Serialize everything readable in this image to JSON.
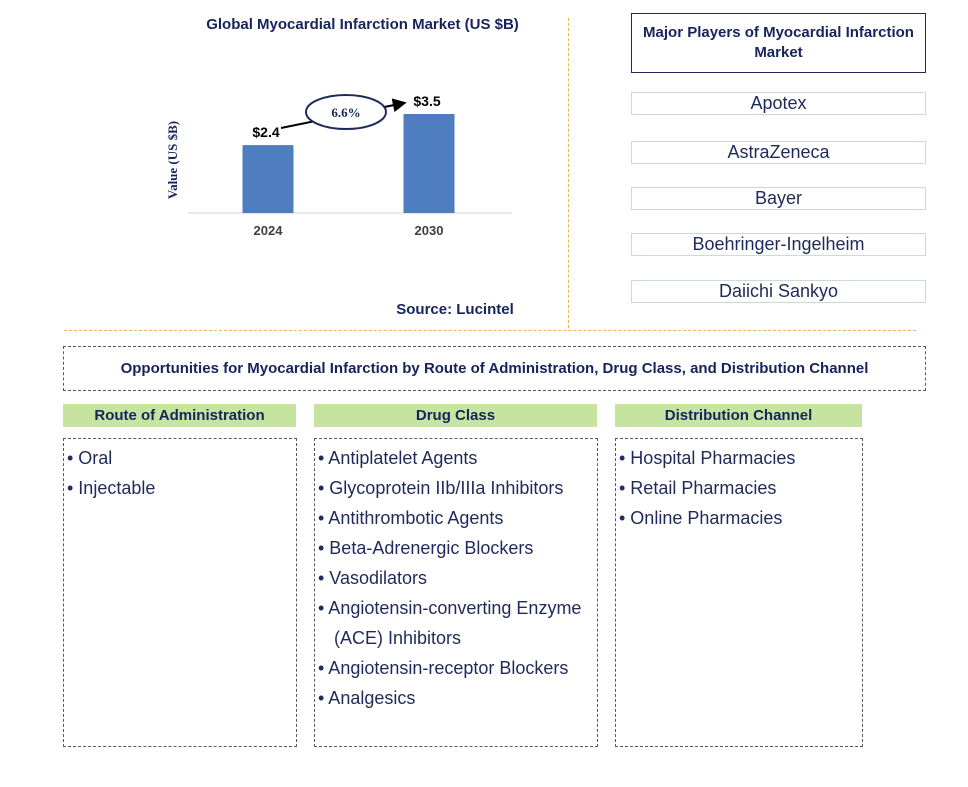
{
  "chart": {
    "title": "Global Myocardial Infarction Market (US $B)",
    "source": "Source: Lucintel"
  },
  "chart_data": {
    "type": "bar",
    "categories": [
      "2024",
      "2030"
    ],
    "values": [
      2.4,
      3.5
    ],
    "data_labels": [
      "$2.4",
      "$3.5"
    ],
    "title": "Global Myocardial Infarction Market (US $B)",
    "xlabel": "",
    "ylabel": "Value (US $B)",
    "ylim": [
      0,
      3.5
    ],
    "grid": false,
    "cagr_annotation": "6.6%",
    "bar_color": "#4f7ec0"
  },
  "players": {
    "title": "Major Players of Myocardial Infarction Market",
    "items": [
      "Apotex",
      "AstraZeneca",
      "Bayer",
      "Boehringer-Ingelheim",
      "Daiichi Sankyo"
    ]
  },
  "opportunities": {
    "title": "Opportunities for Myocardial Infarction by Route of Administration, Drug Class, and Distribution Channel",
    "columns": [
      {
        "header": "Route of Administration",
        "items": [
          "• Oral",
          "• Injectable"
        ]
      },
      {
        "header": "Drug Class",
        "items": [
          "• Antiplatelet Agents",
          "• Glycoprotein IIb/IIIa Inhibitors",
          "• Antithrombotic Agents",
          "• Beta-Adrenergic Blockers",
          "• Vasodilators",
          "• Angiotensin-converting Enzyme",
          "(ACE) Inhibitors",
          "• Angiotensin-receptor Blockers",
          "• Analgesics"
        ]
      },
      {
        "header": "Distribution Channel",
        "items": [
          "• Hospital Pharmacies",
          "• Retail Pharmacies",
          "• Online Pharmacies"
        ]
      }
    ]
  },
  "colors": {
    "accent_green": "#c6e4a0",
    "divider_gold": "#e8b94a",
    "text_navy": "#17245c"
  }
}
